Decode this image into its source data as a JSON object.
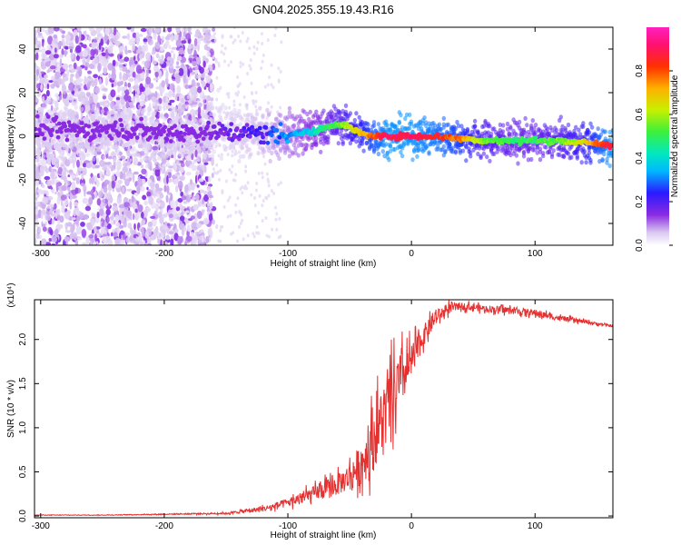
{
  "title": "GN04.2025.355.19.43.R16",
  "chart_data": [
    {
      "type": "heatmap",
      "title": "GN04.2025.355.19.43.R16",
      "xlabel": "Height of straight line (km)",
      "ylabel": "Frequency (Hz)",
      "xlim": [
        -305,
        163
      ],
      "ylim": [
        -50,
        50
      ],
      "xticks": [
        -300,
        -200,
        -100,
        0,
        100
      ],
      "xtick_labels": [
        "-300",
        "-200",
        "-100",
        "0",
        "100"
      ],
      "yticks": [
        -40,
        -20,
        0,
        20,
        40
      ],
      "ytick_labels": [
        "-40",
        "-20",
        "0",
        "20",
        "40"
      ],
      "colorbar": {
        "label": "Normalized spectral amplitude",
        "range": [
          0,
          1
        ],
        "ticks": [
          0,
          0.2,
          0.4,
          0.6,
          0.8
        ],
        "tick_labels": [
          "0.0",
          "0.2",
          "0.4",
          "0.6",
          "0.8"
        ]
      },
      "ridge": {
        "x": [
          -305,
          -250,
          -200,
          -150,
          -120,
          -100,
          -80,
          -65,
          -58,
          -50,
          -40,
          -30,
          -20,
          0,
          20,
          40,
          60,
          80,
          100,
          120,
          140,
          160
        ],
        "frequency": [
          3,
          3,
          2,
          2,
          1,
          1,
          2,
          5,
          6,
          4,
          1,
          0,
          0,
          0,
          0,
          -1,
          -2,
          -2,
          -2,
          -2,
          -3,
          -4
        ],
        "amplitude": [
          0.05,
          0.05,
          0.08,
          0.12,
          0.2,
          0.3,
          0.4,
          0.5,
          0.55,
          0.6,
          0.7,
          0.8,
          0.9,
          0.9,
          0.85,
          0.75,
          0.55,
          0.5,
          0.5,
          0.55,
          0.65,
          0.9
        ]
      }
    },
    {
      "type": "line",
      "xlabel": "Height of straight line (km)",
      "ylabel": "SNR (10 * v/v)",
      "ylabel_multiplier": "(x10⁴)",
      "xlim": [
        -305,
        163
      ],
      "ylim": [
        -0.02,
        2.45
      ],
      "xticks": [
        -300,
        -200,
        -100,
        0,
        100
      ],
      "xtick_labels": [
        "-300",
        "-200",
        "-100",
        "0",
        "100"
      ],
      "yticks": [
        0,
        0.5,
        1.0,
        1.5,
        2.0
      ],
      "ytick_labels": [
        "0.0",
        "0.5",
        "1.0",
        "1.5",
        "2.0"
      ],
      "series": [
        {
          "name": "SNR",
          "color": "#e53030",
          "x": [
            -305,
            -250,
            -200,
            -150,
            -120,
            -100,
            -80,
            -60,
            -50,
            -40,
            -30,
            -20,
            -10,
            0,
            10,
            20,
            30,
            40,
            60,
            80,
            100,
            120,
            140,
            163
          ],
          "y": [
            0.01,
            0.01,
            0.02,
            0.03,
            0.08,
            0.15,
            0.25,
            0.35,
            0.45,
            0.6,
            0.9,
            1.2,
            1.5,
            1.75,
            2.05,
            2.25,
            2.35,
            2.38,
            2.35,
            2.33,
            2.3,
            2.24,
            2.2,
            2.15
          ],
          "noise": [
            0.003,
            0.003,
            0.005,
            0.01,
            0.03,
            0.05,
            0.08,
            0.12,
            0.15,
            0.25,
            0.35,
            0.4,
            0.35,
            0.2,
            0.12,
            0.08,
            0.06,
            0.04,
            0.04,
            0.04,
            0.04,
            0.03,
            0.02,
            0.01
          ]
        }
      ]
    }
  ]
}
